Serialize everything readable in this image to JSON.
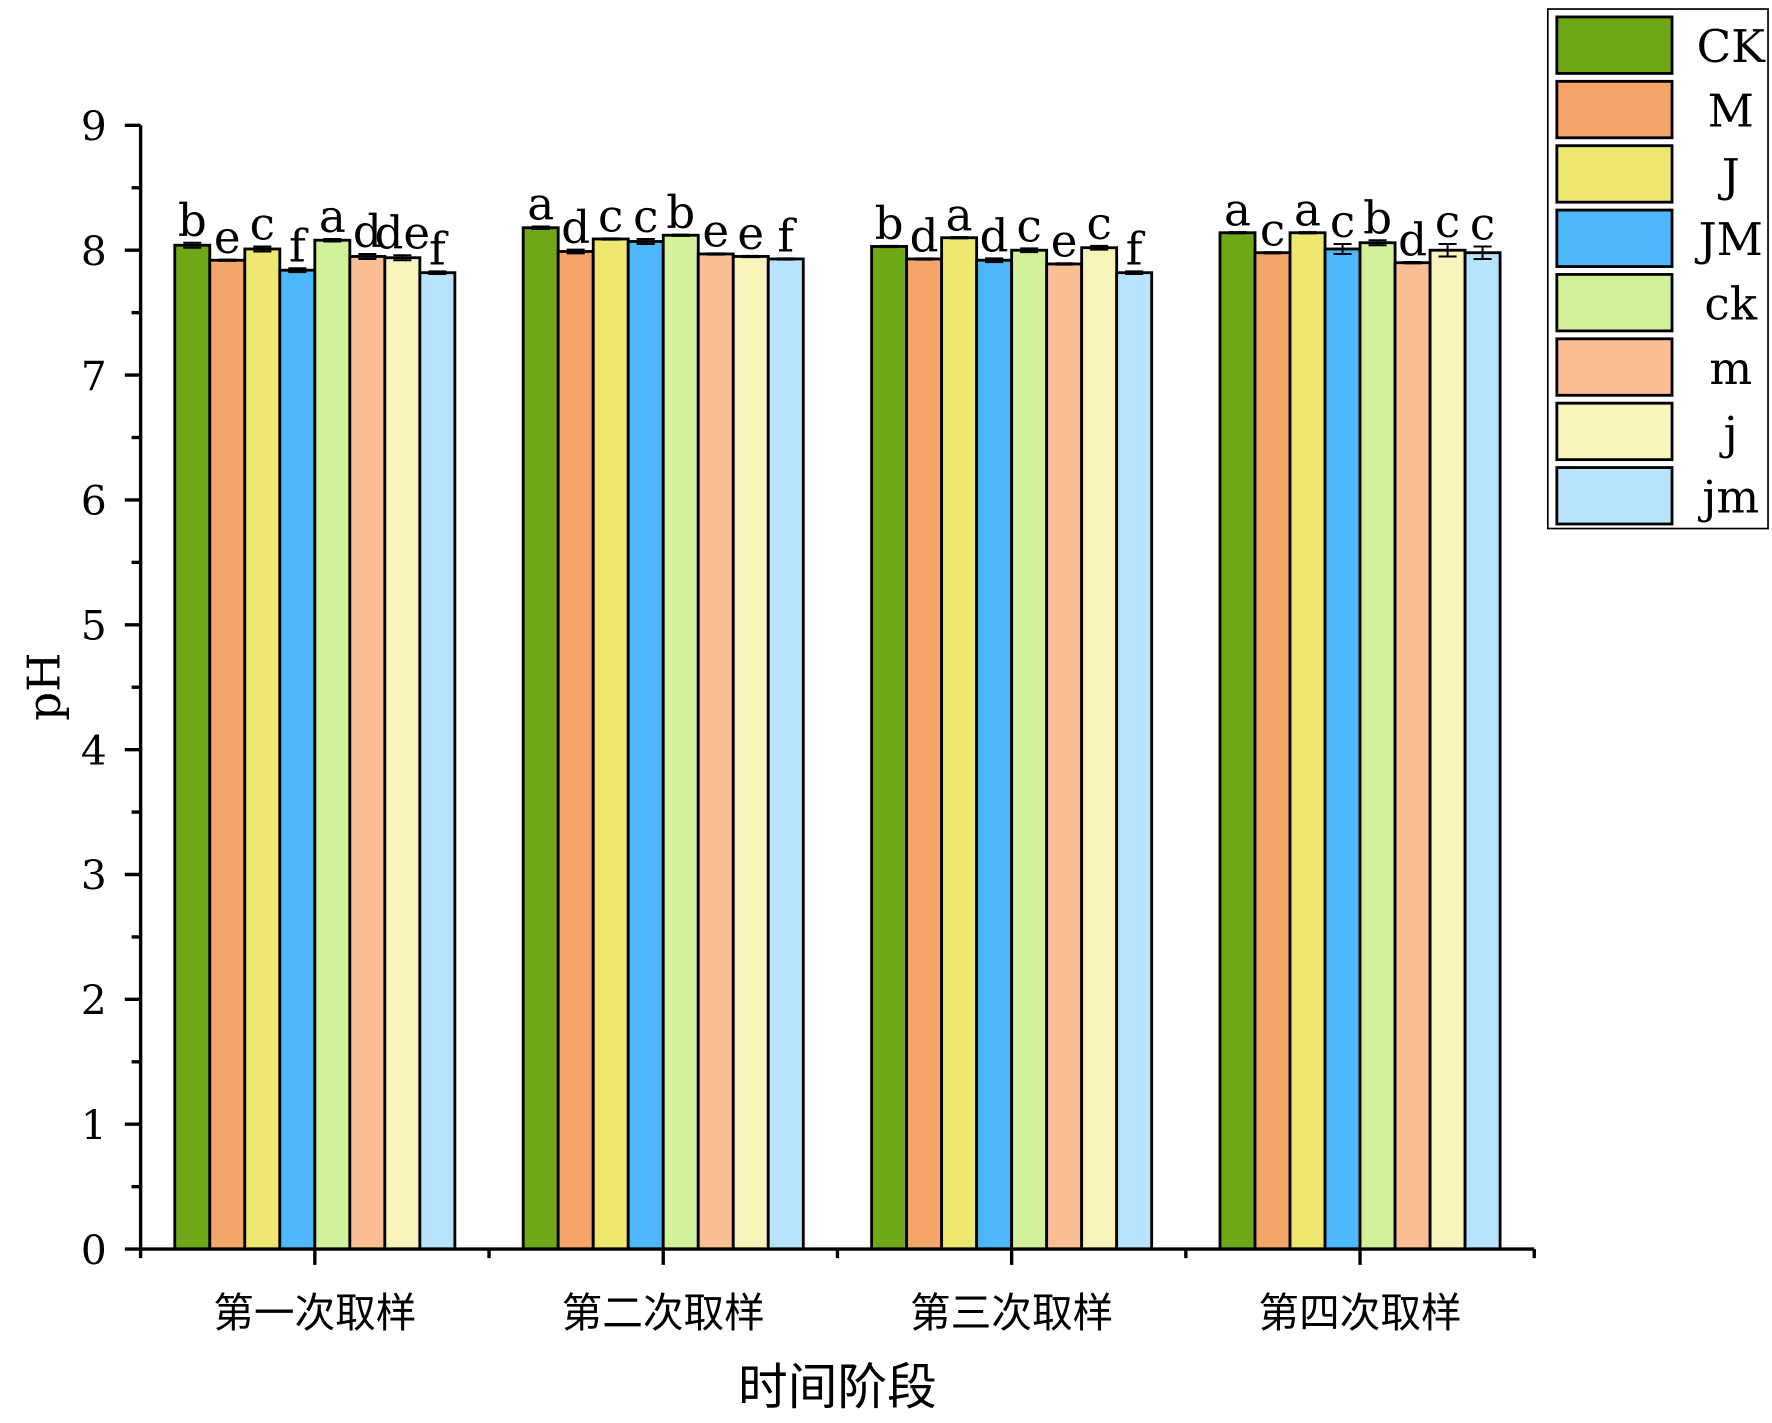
{
  "chart_data": {
    "type": "bar",
    "title": "",
    "xlabel": "时间阶段",
    "ylabel": "pH",
    "ylim": [
      0,
      9
    ],
    "yticks": [
      "0",
      "1",
      "2",
      "3",
      "4",
      "5",
      "6",
      "7",
      "8",
      "9"
    ],
    "grid": false,
    "legend_position": "top-right (outside)",
    "categories": [
      "第一次取样",
      "第二次取样",
      "第三次取样",
      "第四次取样"
    ],
    "series": [
      {
        "name": "CK",
        "color": "#6fa817",
        "values": [
          8.04,
          8.18,
          8.03,
          8.14
        ],
        "errors": [
          0.02,
          0.01,
          0.005,
          0.005
        ],
        "letters": [
          "b",
          "a",
          "b",
          "a"
        ]
      },
      {
        "name": "M",
        "color": "#f4a66a",
        "values": [
          7.92,
          7.99,
          7.93,
          7.98
        ],
        "errors": [
          0.005,
          0.015,
          0.005,
          0.005
        ],
        "letters": [
          "e",
          "d",
          "d",
          "c"
        ]
      },
      {
        "name": "J",
        "color": "#efe870",
        "values": [
          8.01,
          8.09,
          8.1,
          8.14
        ],
        "errors": [
          0.02,
          0.005,
          0.005,
          0.005
        ],
        "letters": [
          "c",
          "c",
          "a",
          "a"
        ]
      },
      {
        "name": "JM",
        "color": "#4db7fc",
        "values": [
          7.84,
          8.07,
          7.92,
          8.01
        ],
        "errors": [
          0.015,
          0.02,
          0.015,
          0.04
        ],
        "letters": [
          "f",
          "c",
          "d",
          "c"
        ]
      },
      {
        "name": "ck",
        "color": "#d3f19a",
        "values": [
          8.08,
          8.12,
          8.0,
          8.06
        ],
        "errors": [
          0.01,
          0.005,
          0.015,
          0.02
        ],
        "letters": [
          "a",
          "b",
          "c",
          "b"
        ]
      },
      {
        "name": "m",
        "color": "#f9be94",
        "values": [
          7.95,
          7.97,
          7.89,
          7.9
        ],
        "errors": [
          0.02,
          0.005,
          0.005,
          0.005
        ],
        "letters": [
          "d",
          "e",
          "e",
          "d"
        ]
      },
      {
        "name": "j",
        "color": "#f8f4bc",
        "values": [
          7.94,
          7.95,
          8.02,
          8.0
        ],
        "errors": [
          0.02,
          0.005,
          0.015,
          0.05
        ],
        "letters": [
          "de",
          "e",
          "c",
          "c"
        ]
      },
      {
        "name": "jm",
        "color": "#b8e3fd",
        "values": [
          7.82,
          7.93,
          7.82,
          7.98
        ],
        "errors": [
          0.01,
          0.005,
          0.01,
          0.05
        ],
        "letters": [
          "f",
          "f",
          "f",
          "c"
        ]
      }
    ]
  }
}
